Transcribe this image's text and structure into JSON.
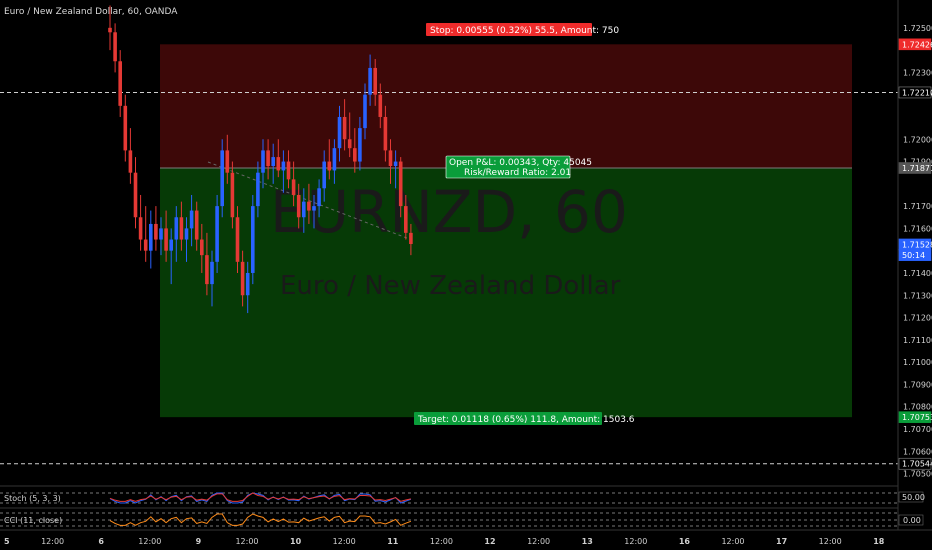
{
  "chart_data": {
    "type": "candlestick",
    "title": "Euro / New Zealand Dollar, 60, OANDA",
    "watermark": {
      "symbol": "EURNZD, 60",
      "name": "Euro / New Zealand Dollar"
    },
    "y_axis": {
      "ylim": [
        1.7048,
        1.7258
      ],
      "ticks": [
        "1.72500",
        "1.72300",
        "1.72200",
        "1.72000",
        "1.71900",
        "1.71700",
        "1.71600",
        "1.71400",
        "1.71300",
        "1.71200",
        "1.71100",
        "1.71000",
        "1.70900",
        "1.70800",
        "1.70700",
        "1.70600",
        "1.70500"
      ],
      "tick_values": [
        1.725,
        1.723,
        1.722,
        1.72,
        1.719,
        1.717,
        1.716,
        1.714,
        1.713,
        1.712,
        1.711,
        1.71,
        1.709,
        1.708,
        1.707,
        1.706,
        1.705
      ],
      "price_tags": [
        {
          "text": "1.72426",
          "value": 1.72426,
          "color": "#ef2b2b"
        },
        {
          "text": "1.72210",
          "value": 1.7221,
          "color": "#000000"
        },
        {
          "text": "1.71871",
          "value": 1.71871,
          "color": "#555555"
        },
        {
          "text": "1.71528",
          "value": 1.71528,
          "color": "#2962ff"
        },
        {
          "text": "50:14",
          "value": 1.7148,
          "color": "#2962ff"
        },
        {
          "text": "1.70753",
          "value": 1.70753,
          "color": "#0a9d3a"
        },
        {
          "text": "1.70544",
          "value": 1.70544,
          "color": "#000000"
        }
      ]
    },
    "x_axis": {
      "ticks": [
        "5",
        "12:00",
        "6",
        "12:00",
        "9",
        "12:00",
        "10",
        "12:00",
        "11",
        "12:00",
        "12",
        "12:00",
        "13",
        "12:00",
        "16",
        "12:00",
        "17",
        "12:00",
        "18"
      ]
    },
    "position": {
      "type": "long",
      "entry": 1.71871,
      "stop": 1.72426,
      "target": 1.70753,
      "stop_label": "Stop: 0.00555 (0.32%) 55.5, Amount: 750",
      "pnl_label": "Open P&L: 0.00343, Qty: 45045",
      "rr_label": "Risk/Reward Ratio: 2.01",
      "target_label": "Target: 0.01118 (0.65%) 111.8, Amount: 1503.6"
    },
    "horizontal_lines": [
      1.7221,
      1.70544
    ],
    "candles": [
      [
        1.725,
        1.726,
        1.724,
        1.7248
      ],
      [
        1.7248,
        1.7252,
        1.723,
        1.7235
      ],
      [
        1.7235,
        1.724,
        1.721,
        1.7215
      ],
      [
        1.7215,
        1.722,
        1.719,
        1.7195
      ],
      [
        1.7195,
        1.7205,
        1.718,
        1.7185
      ],
      [
        1.7185,
        1.7192,
        1.716,
        1.7165
      ],
      [
        1.7165,
        1.7175,
        1.715,
        1.7155
      ],
      [
        1.7155,
        1.717,
        1.7145,
        1.715
      ],
      [
        1.715,
        1.7168,
        1.7142,
        1.7162
      ],
      [
        1.7162,
        1.717,
        1.715,
        1.7155
      ],
      [
        1.7155,
        1.7165,
        1.7148,
        1.716
      ],
      [
        1.716,
        1.7168,
        1.7145,
        1.715
      ],
      [
        1.715,
        1.716,
        1.7135,
        1.7155
      ],
      [
        1.7155,
        1.717,
        1.7145,
        1.7165
      ],
      [
        1.7165,
        1.7172,
        1.715,
        1.7155
      ],
      [
        1.7155,
        1.7165,
        1.7145,
        1.716
      ],
      [
        1.716,
        1.7175,
        1.7152,
        1.7168
      ],
      [
        1.7168,
        1.7172,
        1.715,
        1.7155
      ],
      [
        1.7155,
        1.7162,
        1.714,
        1.7148
      ],
      [
        1.7148,
        1.7158,
        1.713,
        1.7135
      ],
      [
        1.7135,
        1.715,
        1.7125,
        1.7145
      ],
      [
        1.7145,
        1.7175,
        1.714,
        1.717
      ],
      [
        1.717,
        1.72,
        1.7165,
        1.7195
      ],
      [
        1.7195,
        1.7202,
        1.718,
        1.7185
      ],
      [
        1.7185,
        1.719,
        1.716,
        1.7165
      ],
      [
        1.7165,
        1.717,
        1.714,
        1.7145
      ],
      [
        1.7145,
        1.715,
        1.7125,
        1.713
      ],
      [
        1.713,
        1.7145,
        1.7122,
        1.714
      ],
      [
        1.714,
        1.7175,
        1.7135,
        1.717
      ],
      [
        1.717,
        1.719,
        1.7165,
        1.7185
      ],
      [
        1.7185,
        1.72,
        1.7178,
        1.7195
      ],
      [
        1.7195,
        1.72,
        1.7182,
        1.7188
      ],
      [
        1.7188,
        1.7198,
        1.718,
        1.7192
      ],
      [
        1.7192,
        1.72,
        1.7183,
        1.7186
      ],
      [
        1.7186,
        1.7195,
        1.7176,
        1.719
      ],
      [
        1.719,
        1.7195,
        1.7178,
        1.7182
      ],
      [
        1.7182,
        1.719,
        1.717,
        1.7175
      ],
      [
        1.7175,
        1.718,
        1.716,
        1.7165
      ],
      [
        1.7165,
        1.7178,
        1.7158,
        1.7172
      ],
      [
        1.7172,
        1.718,
        1.7162,
        1.7168
      ],
      [
        1.7168,
        1.7175,
        1.716,
        1.717
      ],
      [
        1.717,
        1.7182,
        1.7165,
        1.7178
      ],
      [
        1.7178,
        1.7195,
        1.7172,
        1.719
      ],
      [
        1.719,
        1.72,
        1.7182,
        1.7186
      ],
      [
        1.7186,
        1.72,
        1.718,
        1.7196
      ],
      [
        1.7196,
        1.7215,
        1.719,
        1.721
      ],
      [
        1.721,
        1.7218,
        1.7195,
        1.72
      ],
      [
        1.72,
        1.7212,
        1.7192,
        1.7196
      ],
      [
        1.7196,
        1.7205,
        1.7185,
        1.719
      ],
      [
        1.719,
        1.721,
        1.7186,
        1.7205
      ],
      [
        1.7205,
        1.7225,
        1.72,
        1.722
      ],
      [
        1.722,
        1.7238,
        1.7215,
        1.7232
      ],
      [
        1.7232,
        1.7236,
        1.7215,
        1.722
      ],
      [
        1.722,
        1.7225,
        1.7205,
        1.721
      ],
      [
        1.721,
        1.7215,
        1.719,
        1.7195
      ],
      [
        1.7195,
        1.72,
        1.718,
        1.7188
      ],
      [
        1.7188,
        1.7195,
        1.7178,
        1.719
      ],
      [
        1.719,
        1.7192,
        1.7165,
        1.717
      ],
      [
        1.717,
        1.7175,
        1.7155,
        1.7158
      ],
      [
        1.7158,
        1.7162,
        1.7148,
        1.7153
      ]
    ],
    "indicators": [
      {
        "name": "Stoch (5, 3, 3)",
        "value_tag": "50.00"
      },
      {
        "name": "CCI (11, close)",
        "value_tag": "0.00"
      }
    ]
  }
}
